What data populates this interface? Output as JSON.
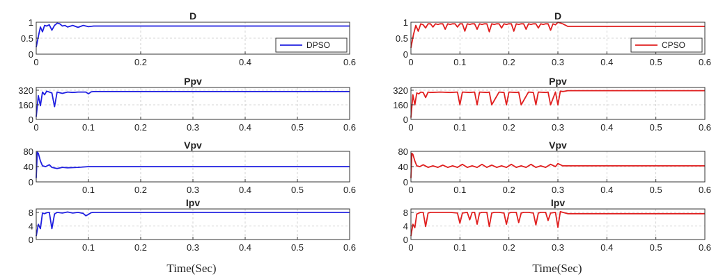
{
  "figure": {
    "xlabels": [
      "Time(Sec)",
      "Time(Sec)"
    ]
  },
  "chart_data": [
    {
      "type": "line",
      "title": "D",
      "series": [
        {
          "name": "DPSO",
          "color": "#1f1fe0"
        }
      ],
      "xlim": [
        0,
        0.6
      ],
      "ylim": [
        0,
        1
      ],
      "xticks": [
        0,
        0.2,
        0.4,
        0.6
      ],
      "yticks": [
        0,
        0.5,
        1
      ],
      "xtick_labels": [
        "0",
        "0.2",
        "0.4",
        "0.6"
      ],
      "ytick_labels": [
        "0",
        "0.5",
        "1"
      ],
      "grid": true,
      "legend": "bottom-right",
      "x": [
        0,
        0.004,
        0.008,
        0.012,
        0.016,
        0.02,
        0.025,
        0.03,
        0.035,
        0.04,
        0.045,
        0.05,
        0.055,
        0.06,
        0.07,
        0.08,
        0.09,
        0.1,
        0.11,
        0.12,
        0.6
      ],
      "y": [
        0.22,
        0.55,
        0.85,
        0.7,
        0.9,
        0.88,
        0.92,
        0.75,
        0.9,
        0.97,
        0.95,
        0.88,
        0.9,
        0.85,
        0.9,
        0.84,
        0.9,
        0.86,
        0.88,
        0.88,
        0.88
      ]
    },
    {
      "type": "line",
      "title": "Ppv",
      "series": [
        {
          "name": "DPSO",
          "color": "#1f1fe0"
        }
      ],
      "xlim": [
        0,
        0.6
      ],
      "ylim": [
        0,
        350
      ],
      "xticks": [
        0,
        0.1,
        0.2,
        0.3,
        0.4,
        0.5,
        0.6
      ],
      "yticks": [
        0,
        160,
        320
      ],
      "xtick_labels": [
        "0",
        "0.1",
        "0.2",
        "0.3",
        "0.4",
        "0.5",
        "0.6"
      ],
      "ytick_labels": [
        "0",
        "160",
        "320"
      ],
      "grid": true,
      "x": [
        0,
        0.004,
        0.008,
        0.012,
        0.016,
        0.02,
        0.025,
        0.03,
        0.035,
        0.04,
        0.05,
        0.06,
        0.07,
        0.08,
        0.095,
        0.1,
        0.105,
        0.11,
        0.6
      ],
      "y": [
        30,
        260,
        150,
        300,
        270,
        310,
        300,
        290,
        140,
        300,
        285,
        300,
        295,
        300,
        300,
        280,
        302,
        305,
        305
      ]
    },
    {
      "type": "line",
      "title": "Vpv",
      "series": [
        {
          "name": "DPSO",
          "color": "#1f1fe0"
        }
      ],
      "xlim": [
        0,
        0.6
      ],
      "ylim": [
        0,
        80
      ],
      "xticks": [
        0.1,
        0.2,
        0.3,
        0.4,
        0.5,
        0.6
      ],
      "yticks": [
        0,
        40,
        80
      ],
      "xtick_labels": [
        "0.1",
        "0.2",
        "0.3",
        "0.4",
        "0.5",
        "0.6"
      ],
      "ytick_labels": [
        "0",
        "40",
        "80"
      ],
      "grid": true,
      "x": [
        0,
        0.002,
        0.004,
        0.008,
        0.012,
        0.018,
        0.025,
        0.03,
        0.04,
        0.05,
        0.06,
        0.08,
        0.1,
        0.6
      ],
      "y": [
        10,
        78,
        75,
        55,
        42,
        40,
        45,
        38,
        35,
        38,
        37,
        38,
        40,
        40
      ]
    },
    {
      "type": "line",
      "title": "Ipv",
      "series": [
        {
          "name": "DPSO",
          "color": "#1f1fe0"
        }
      ],
      "xlim": [
        0,
        0.6
      ],
      "ylim": [
        0,
        9
      ],
      "xticks": [
        0.1,
        0.2,
        0.3,
        0.4,
        0.5,
        0.6
      ],
      "yticks": [
        0,
        4,
        8
      ],
      "xtick_labels": [
        "0.1",
        "0.2",
        "0.3",
        "0.4",
        "0.5",
        "0.6"
      ],
      "ytick_labels": [
        "0",
        "4",
        "8"
      ],
      "grid": true,
      "x": [
        0,
        0.004,
        0.008,
        0.012,
        0.016,
        0.02,
        0.025,
        0.03,
        0.035,
        0.04,
        0.05,
        0.06,
        0.07,
        0.08,
        0.09,
        0.095,
        0.1,
        0.105,
        0.11,
        0.6
      ],
      "y": [
        1,
        4.5,
        3.2,
        7.8,
        7.6,
        7.9,
        8,
        3.2,
        7.5,
        8,
        7.8,
        8.1,
        7.8,
        8,
        7.7,
        7,
        7.4,
        7.9,
        8,
        8
      ]
    },
    {
      "type": "line",
      "title": "D",
      "series": [
        {
          "name": "CPSO",
          "color": "#e01f1f"
        }
      ],
      "xlim": [
        0,
        0.6
      ],
      "ylim": [
        0,
        1
      ],
      "xticks": [
        0,
        0.1,
        0.2,
        0.3,
        0.4,
        0.5,
        0.6
      ],
      "yticks": [
        0,
        0.5,
        1
      ],
      "xtick_labels": [
        "0",
        "0.1",
        "0.2",
        "0.3",
        "0.4",
        "0.5",
        "0.6"
      ],
      "ytick_labels": [
        "0",
        "0.5",
        "1"
      ],
      "grid": true,
      "legend": "bottom-right",
      "x": [
        0,
        0.005,
        0.01,
        0.015,
        0.02,
        0.025,
        0.03,
        0.035,
        0.04,
        0.045,
        0.05,
        0.055,
        0.06,
        0.065,
        0.07,
        0.075,
        0.08,
        0.085,
        0.09,
        0.095,
        0.1,
        0.105,
        0.11,
        0.115,
        0.12,
        0.125,
        0.13,
        0.135,
        0.14,
        0.145,
        0.15,
        0.155,
        0.16,
        0.165,
        0.17,
        0.175,
        0.18,
        0.185,
        0.19,
        0.195,
        0.2,
        0.205,
        0.21,
        0.215,
        0.22,
        0.225,
        0.23,
        0.235,
        0.24,
        0.245,
        0.25,
        0.255,
        0.26,
        0.265,
        0.27,
        0.275,
        0.28,
        0.285,
        0.29,
        0.295,
        0.3,
        0.31,
        0.32,
        0.6
      ],
      "y": [
        0.2,
        0.6,
        0.9,
        0.72,
        0.95,
        0.92,
        0.82,
        0.95,
        0.95,
        0.85,
        0.95,
        0.93,
        0.95,
        0.95,
        0.78,
        0.95,
        0.93,
        0.95,
        0.95,
        0.85,
        0.95,
        0.95,
        0.72,
        0.95,
        0.93,
        0.95,
        0.95,
        0.78,
        0.95,
        0.93,
        0.95,
        0.95,
        0.7,
        0.95,
        0.93,
        0.95,
        0.95,
        0.82,
        0.95,
        0.93,
        0.95,
        0.95,
        0.72,
        0.95,
        0.93,
        0.95,
        0.95,
        0.78,
        0.95,
        0.93,
        0.95,
        0.95,
        0.82,
        0.95,
        0.93,
        0.95,
        0.95,
        0.75,
        0.95,
        0.92,
        1.0,
        0.95,
        0.87,
        0.87
      ]
    },
    {
      "type": "line",
      "title": "Ppv",
      "series": [
        {
          "name": "CPSO",
          "color": "#e01f1f"
        }
      ],
      "xlim": [
        0,
        0.6
      ],
      "ylim": [
        0,
        350
      ],
      "xticks": [
        0,
        0.1,
        0.2,
        0.3,
        0.4,
        0.5,
        0.6
      ],
      "yticks": [
        0,
        160,
        320
      ],
      "xtick_labels": [
        "0",
        "0.1",
        "0.2",
        "0.3",
        "0.4",
        "0.5",
        "0.6"
      ],
      "ytick_labels": [
        "0",
        "160",
        "320"
      ],
      "grid": true,
      "x": [
        0,
        0.004,
        0.008,
        0.012,
        0.016,
        0.02,
        0.025,
        0.03,
        0.035,
        0.04,
        0.06,
        0.08,
        0.095,
        0.1,
        0.105,
        0.12,
        0.13,
        0.135,
        0.14,
        0.155,
        0.16,
        0.165,
        0.18,
        0.19,
        0.195,
        0.2,
        0.215,
        0.22,
        0.225,
        0.24,
        0.25,
        0.255,
        0.26,
        0.275,
        0.28,
        0.285,
        0.295,
        0.3,
        0.305,
        0.31,
        0.32,
        0.6
      ],
      "y": [
        20,
        270,
        160,
        290,
        280,
        300,
        295,
        240,
        300,
        295,
        300,
        295,
        300,
        160,
        300,
        295,
        300,
        160,
        300,
        295,
        300,
        160,
        300,
        295,
        160,
        300,
        295,
        300,
        160,
        300,
        295,
        160,
        300,
        295,
        300,
        160,
        300,
        160,
        310,
        305,
        315,
        315
      ]
    },
    {
      "type": "line",
      "title": "Vpv",
      "series": [
        {
          "name": "CPSO",
          "color": "#e01f1f"
        }
      ],
      "xlim": [
        0,
        0.6
      ],
      "ylim": [
        0,
        80
      ],
      "xticks": [
        0,
        0.1,
        0.2,
        0.3,
        0.4,
        0.5,
        0.6
      ],
      "yticks": [
        0,
        40,
        80
      ],
      "xtick_labels": [
        "0",
        "0.1",
        "0.2",
        "0.3",
        "0.4",
        "0.5",
        "0.6"
      ],
      "ytick_labels": [
        "0",
        "40",
        "80"
      ],
      "grid": true,
      "x": [
        0,
        0.002,
        0.004,
        0.008,
        0.012,
        0.018,
        0.025,
        0.035,
        0.045,
        0.055,
        0.065,
        0.075,
        0.085,
        0.095,
        0.105,
        0.115,
        0.125,
        0.135,
        0.145,
        0.155,
        0.165,
        0.175,
        0.185,
        0.195,
        0.205,
        0.215,
        0.225,
        0.235,
        0.245,
        0.255,
        0.265,
        0.275,
        0.285,
        0.295,
        0.3,
        0.31,
        0.32,
        0.6
      ],
      "y": [
        10,
        75,
        72,
        55,
        42,
        40,
        45,
        38,
        42,
        38,
        44,
        38,
        42,
        38,
        46,
        38,
        42,
        38,
        46,
        38,
        44,
        38,
        42,
        38,
        46,
        38,
        42,
        38,
        46,
        38,
        42,
        38,
        46,
        40,
        48,
        42,
        42,
        42
      ]
    },
    {
      "type": "line",
      "title": "Ipv",
      "series": [
        {
          "name": "CPSO",
          "color": "#e01f1f"
        }
      ],
      "xlim": [
        0,
        0.6
      ],
      "ylim": [
        0,
        9
      ],
      "xticks": [
        0,
        0.1,
        0.2,
        0.3,
        0.4,
        0.5,
        0.6
      ],
      "yticks": [
        0,
        4,
        8
      ],
      "xtick_labels": [
        "0",
        "0.1",
        "0.2",
        "0.3",
        "0.4",
        "0.5",
        "0.6"
      ],
      "ytick_labels": [
        "0",
        "4",
        "8"
      ],
      "grid": true,
      "x": [
        0,
        0.004,
        0.008,
        0.012,
        0.016,
        0.02,
        0.025,
        0.03,
        0.035,
        0.04,
        0.06,
        0.08,
        0.095,
        0.1,
        0.105,
        0.115,
        0.12,
        0.125,
        0.13,
        0.135,
        0.14,
        0.145,
        0.155,
        0.16,
        0.165,
        0.17,
        0.18,
        0.19,
        0.195,
        0.2,
        0.205,
        0.215,
        0.22,
        0.225,
        0.23,
        0.24,
        0.25,
        0.255,
        0.26,
        0.265,
        0.275,
        0.28,
        0.285,
        0.295,
        0.3,
        0.305,
        0.31,
        0.32,
        0.6
      ],
      "y": [
        1,
        4.5,
        3.5,
        7.5,
        7.8,
        8,
        8,
        3.8,
        7.8,
        8,
        8,
        8,
        7.8,
        4.8,
        7.8,
        8,
        5.8,
        8,
        8,
        4.5,
        7.8,
        8,
        8,
        3.8,
        7.8,
        8,
        8,
        7.8,
        4.5,
        7.8,
        8,
        8,
        5,
        7.8,
        8,
        8,
        7.8,
        4.3,
        7.8,
        8,
        8,
        5.6,
        7.8,
        8,
        3.6,
        8.2,
        8,
        7.6,
        7.6
      ]
    }
  ]
}
